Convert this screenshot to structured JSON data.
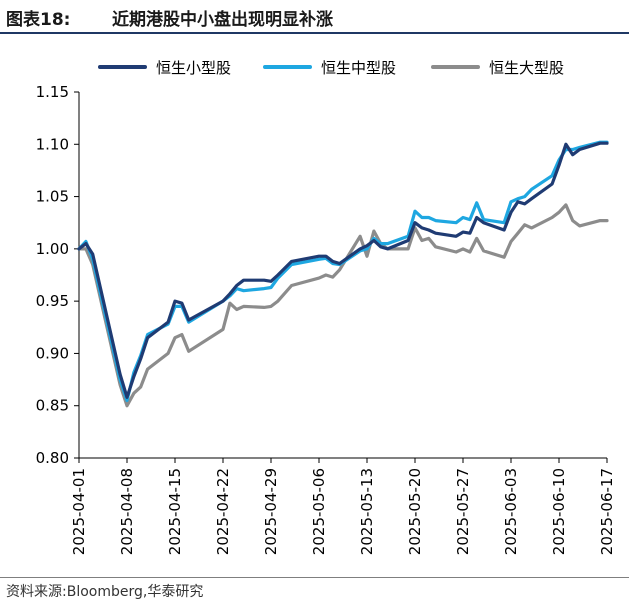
{
  "header": {
    "figure_number": "图表18:",
    "title": "近期港股中小盘出现明显补涨"
  },
  "footer": {
    "source": "资料来源:Bloomberg,华泰研究"
  },
  "chart_data": {
    "type": "line",
    "title": "近期港股中小盘出现明显补涨",
    "xlabel": "",
    "ylabel": "",
    "ylim": [
      0.8,
      1.15
    ],
    "xlim": [
      "2025-04-01",
      "2025-06-17"
    ],
    "yticks": [
      "0.80",
      "0.85",
      "0.90",
      "0.95",
      "1.00",
      "1.05",
      "1.10",
      "1.15"
    ],
    "xticks": [
      "2025-04-01",
      "2025-04-08",
      "2025-04-15",
      "2025-04-22",
      "2025-04-29",
      "2025-05-06",
      "2025-05-13",
      "2025-05-20",
      "2025-05-27",
      "2025-06-03",
      "2025-06-10",
      "2025-06-17"
    ],
    "grid": false,
    "legend_position": "top",
    "series": [
      {
        "name": "恒生小型股",
        "color": "#1f3b73",
        "points": [
          [
            "2025-04-01",
            1.0
          ],
          [
            "2025-04-02",
            1.005
          ],
          [
            "2025-04-03",
            0.995
          ],
          [
            "2025-04-07",
            0.88
          ],
          [
            "2025-04-08",
            0.858
          ],
          [
            "2025-04-09",
            0.878
          ],
          [
            "2025-04-10",
            0.895
          ],
          [
            "2025-04-11",
            0.915
          ],
          [
            "2025-04-14",
            0.93
          ],
          [
            "2025-04-15",
            0.95
          ],
          [
            "2025-04-16",
            0.948
          ],
          [
            "2025-04-17",
            0.932
          ],
          [
            "2025-04-22",
            0.95
          ],
          [
            "2025-04-23",
            0.957
          ],
          [
            "2025-04-24",
            0.965
          ],
          [
            "2025-04-25",
            0.97
          ],
          [
            "2025-04-28",
            0.97
          ],
          [
            "2025-04-29",
            0.969
          ],
          [
            "2025-04-30",
            0.975
          ],
          [
            "2025-05-02",
            0.988
          ],
          [
            "2025-05-06",
            0.993
          ],
          [
            "2025-05-07",
            0.993
          ],
          [
            "2025-05-08",
            0.988
          ],
          [
            "2025-05-09",
            0.986
          ],
          [
            "2025-05-12",
            1.0
          ],
          [
            "2025-05-13",
            1.003
          ],
          [
            "2025-05-14",
            1.008
          ],
          [
            "2025-05-15",
            1.002
          ],
          [
            "2025-05-16",
            1.0
          ],
          [
            "2025-05-19",
            1.008
          ],
          [
            "2025-05-20",
            1.025
          ],
          [
            "2025-05-21",
            1.02
          ],
          [
            "2025-05-22",
            1.018
          ],
          [
            "2025-05-23",
            1.015
          ],
          [
            "2025-05-26",
            1.012
          ],
          [
            "2025-05-27",
            1.016
          ],
          [
            "2025-05-28",
            1.015
          ],
          [
            "2025-05-29",
            1.03
          ],
          [
            "2025-05-30",
            1.025
          ],
          [
            "2025-06-02",
            1.018
          ],
          [
            "2025-06-03",
            1.035
          ],
          [
            "2025-06-04",
            1.045
          ],
          [
            "2025-06-05",
            1.043
          ],
          [
            "2025-06-06",
            1.048
          ],
          [
            "2025-06-09",
            1.062
          ],
          [
            "2025-06-10",
            1.08
          ],
          [
            "2025-06-11",
            1.1
          ],
          [
            "2025-06-12",
            1.09
          ],
          [
            "2025-06-13",
            1.095
          ],
          [
            "2025-06-16",
            1.101
          ],
          [
            "2025-06-17",
            1.101
          ]
        ]
      },
      {
        "name": "恒生中型股",
        "color": "#1ea7e1",
        "points": [
          [
            "2025-04-01",
            1.0
          ],
          [
            "2025-04-02",
            1.007
          ],
          [
            "2025-04-03",
            0.99
          ],
          [
            "2025-04-07",
            0.875
          ],
          [
            "2025-04-08",
            0.855
          ],
          [
            "2025-04-09",
            0.882
          ],
          [
            "2025-04-10",
            0.898
          ],
          [
            "2025-04-11",
            0.918
          ],
          [
            "2025-04-14",
            0.928
          ],
          [
            "2025-04-15",
            0.945
          ],
          [
            "2025-04-16",
            0.945
          ],
          [
            "2025-04-17",
            0.93
          ],
          [
            "2025-04-22",
            0.95
          ],
          [
            "2025-04-23",
            0.955
          ],
          [
            "2025-04-24",
            0.962
          ],
          [
            "2025-04-25",
            0.96
          ],
          [
            "2025-04-28",
            0.962
          ],
          [
            "2025-04-29",
            0.963
          ],
          [
            "2025-04-30",
            0.972
          ],
          [
            "2025-05-02",
            0.985
          ],
          [
            "2025-05-06",
            0.99
          ],
          [
            "2025-05-07",
            0.991
          ],
          [
            "2025-05-08",
            0.986
          ],
          [
            "2025-05-09",
            0.985
          ],
          [
            "2025-05-12",
            0.998
          ],
          [
            "2025-05-13",
            1.0
          ],
          [
            "2025-05-14",
            1.01
          ],
          [
            "2025-05-15",
            1.005
          ],
          [
            "2025-05-16",
            1.005
          ],
          [
            "2025-05-19",
            1.012
          ],
          [
            "2025-05-20",
            1.036
          ],
          [
            "2025-05-21",
            1.03
          ],
          [
            "2025-05-22",
            1.03
          ],
          [
            "2025-05-23",
            1.027
          ],
          [
            "2025-05-26",
            1.025
          ],
          [
            "2025-05-27",
            1.03
          ],
          [
            "2025-05-28",
            1.028
          ],
          [
            "2025-05-29",
            1.044
          ],
          [
            "2025-05-30",
            1.028
          ],
          [
            "2025-06-02",
            1.025
          ],
          [
            "2025-06-03",
            1.045
          ],
          [
            "2025-06-04",
            1.048
          ],
          [
            "2025-06-05",
            1.05
          ],
          [
            "2025-06-06",
            1.057
          ],
          [
            "2025-06-09",
            1.07
          ],
          [
            "2025-06-10",
            1.085
          ],
          [
            "2025-06-11",
            1.095
          ],
          [
            "2025-06-12",
            1.095
          ],
          [
            "2025-06-13",
            1.097
          ],
          [
            "2025-06-16",
            1.102
          ],
          [
            "2025-06-17",
            1.102
          ]
        ]
      },
      {
        "name": "恒生大型股",
        "color": "#8c8c8c",
        "points": [
          [
            "2025-04-01",
            1.0
          ],
          [
            "2025-04-02",
            1.0
          ],
          [
            "2025-04-03",
            0.985
          ],
          [
            "2025-04-07",
            0.87
          ],
          [
            "2025-04-08",
            0.85
          ],
          [
            "2025-04-09",
            0.862
          ],
          [
            "2025-04-10",
            0.868
          ],
          [
            "2025-04-11",
            0.885
          ],
          [
            "2025-04-14",
            0.9
          ],
          [
            "2025-04-15",
            0.915
          ],
          [
            "2025-04-16",
            0.918
          ],
          [
            "2025-04-17",
            0.902
          ],
          [
            "2025-04-22",
            0.923
          ],
          [
            "2025-04-23",
            0.948
          ],
          [
            "2025-04-24",
            0.942
          ],
          [
            "2025-04-25",
            0.945
          ],
          [
            "2025-04-28",
            0.944
          ],
          [
            "2025-04-29",
            0.945
          ],
          [
            "2025-04-30",
            0.95
          ],
          [
            "2025-05-02",
            0.965
          ],
          [
            "2025-05-06",
            0.972
          ],
          [
            "2025-05-07",
            0.975
          ],
          [
            "2025-05-08",
            0.973
          ],
          [
            "2025-05-09",
            0.98
          ],
          [
            "2025-05-12",
            1.012
          ],
          [
            "2025-05-13",
            0.993
          ],
          [
            "2025-05-14",
            1.017
          ],
          [
            "2025-05-15",
            1.005
          ],
          [
            "2025-05-16",
            1.0
          ],
          [
            "2025-05-19",
            1.0
          ],
          [
            "2025-05-20",
            1.02
          ],
          [
            "2025-05-21",
            1.008
          ],
          [
            "2025-05-22",
            1.01
          ],
          [
            "2025-05-23",
            1.002
          ],
          [
            "2025-05-26",
            0.997
          ],
          [
            "2025-05-27",
            1.0
          ],
          [
            "2025-05-28",
            0.997
          ],
          [
            "2025-05-29",
            1.01
          ],
          [
            "2025-05-30",
            0.998
          ],
          [
            "2025-06-02",
            0.992
          ],
          [
            "2025-06-03",
            1.007
          ],
          [
            "2025-06-04",
            1.015
          ],
          [
            "2025-06-05",
            1.023
          ],
          [
            "2025-06-06",
            1.02
          ],
          [
            "2025-06-09",
            1.03
          ],
          [
            "2025-06-10",
            1.035
          ],
          [
            "2025-06-11",
            1.042
          ],
          [
            "2025-06-12",
            1.027
          ],
          [
            "2025-06-13",
            1.022
          ],
          [
            "2025-06-16",
            1.027
          ],
          [
            "2025-06-17",
            1.027
          ]
        ]
      }
    ]
  }
}
